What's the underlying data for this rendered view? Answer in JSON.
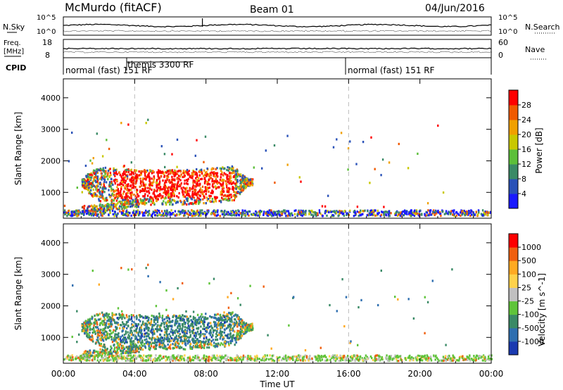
{
  "header": {
    "station": "McMurdo (fitACF)",
    "beam": "Beam 01",
    "date": "04/Jun/2016"
  },
  "top_panels": {
    "nsky_label": "N.Sky",
    "nsky_ticks": [
      "10^5",
      "10^0"
    ],
    "nsearch_label": "N.Search",
    "nsearch_ticks": [
      "10^5",
      "10^0"
    ],
    "freq_label_line1": "Freq.",
    "freq_label_line2": "[MHz]",
    "freq_ticks": [
      "18",
      "8"
    ],
    "nave_label": "Nave",
    "nave_ticks": [
      "60",
      "0"
    ],
    "cpid_label": "CPID",
    "cpid_segments": [
      {
        "label": "normal (fast) 151 RF"
      },
      {
        "label": "themis 3300 RF"
      },
      {
        "label": "normal (fast) 151 RF"
      }
    ]
  },
  "colors": {
    "axis": "#000000",
    "dashed_marker": "#bbbbbb",
    "ground_scatter": "#999999"
  },
  "chart_data": [
    {
      "type": "heatmap",
      "title": "",
      "xlabel": "",
      "ylabel": "Slant Range [km]",
      "xlim": [
        0,
        24
      ],
      "ylim": [
        180,
        4600
      ],
      "x_ticks": [
        0,
        4,
        8,
        12,
        16,
        20,
        24
      ],
      "y_ticks": [
        1000,
        2000,
        3000,
        4000
      ],
      "y_tick_labels": [
        "1000",
        "2000",
        "3000",
        "4000"
      ],
      "vertical_markers_hours": [
        4,
        16
      ],
      "colorbar": {
        "label": "Power [dB]",
        "tick_labels": [
          "4",
          "8",
          "12",
          "16",
          "20",
          "24",
          "28"
        ],
        "colors": [
          "#1a1aff",
          "#2a52b8",
          "#3a8a66",
          "#5cbf3a",
          "#c8c800",
          "#f0a000",
          "#f05a00",
          "#ff0000"
        ]
      },
      "regions": [
        {
          "hours": [
            0.9,
            10.5
          ],
          "range_km": [
            700,
            2100
          ],
          "level": "low-mid"
        },
        {
          "hours": [
            2.5,
            9.8
          ],
          "range_km": [
            700,
            1800
          ],
          "level": "high"
        },
        {
          "hours": [
            1.0,
            4.0
          ],
          "range_km": [
            300,
            700
          ],
          "level": "mid"
        },
        {
          "hours": [
            0.0,
            24.0
          ],
          "range_km": [
            250,
            450
          ],
          "level": "mixed"
        }
      ]
    },
    {
      "type": "heatmap",
      "title": "",
      "xlabel": "Time UT",
      "ylabel": "Slant Range [km]",
      "xlim": [
        0,
        24
      ],
      "ylim": [
        180,
        4600
      ],
      "x_ticks": [
        0,
        4,
        8,
        12,
        16,
        20,
        24
      ],
      "x_tick_labels": [
        "00:00",
        "04:00",
        "08:00",
        "12:00",
        "16:00",
        "20:00",
        "00:00"
      ],
      "y_ticks": [
        1000,
        2000,
        3000,
        4000
      ],
      "y_tick_labels": [
        "1000",
        "2000",
        "3000",
        "4000"
      ],
      "vertical_markers_hours": [
        4,
        16
      ],
      "colorbar": {
        "label": "Velocity [m s^-1]",
        "tick_labels": [
          "1000",
          "500",
          "100",
          "25",
          "-25",
          "-100",
          "-500",
          "-1000"
        ],
        "colors": [
          "#1a3ab0",
          "#2f6fb0",
          "#3a8a66",
          "#5fc43a",
          "#c0c0c0",
          "#ffd24a",
          "#ffaa22",
          "#f06010",
          "#ff0000"
        ]
      },
      "regions": [
        {
          "hours": [
            0.9,
            10.5
          ],
          "range_km": [
            700,
            2100
          ],
          "level": "slow"
        },
        {
          "hours": [
            2.5,
            9.8
          ],
          "range_km": [
            700,
            1800
          ],
          "level": "toward"
        },
        {
          "hours": [
            0.0,
            24.0
          ],
          "range_km": [
            250,
            450
          ],
          "level": "near-zero"
        }
      ]
    }
  ]
}
